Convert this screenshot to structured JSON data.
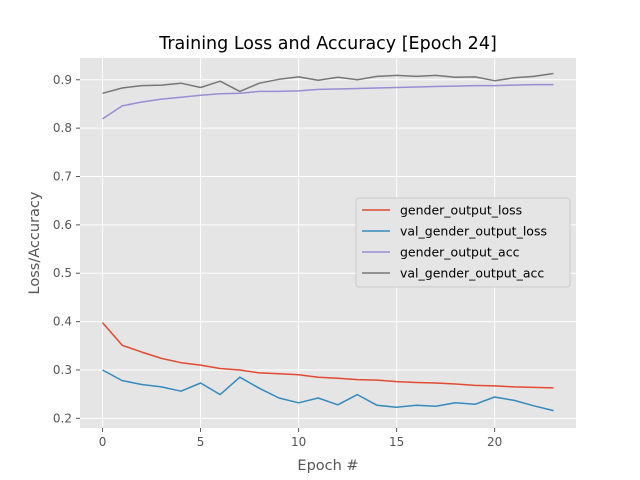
{
  "chart_data": {
    "type": "line",
    "title": "Training Loss and Accuracy  [Epoch 24]",
    "xlabel": "Epoch #",
    "ylabel": "Loss/Accuracy",
    "xlim": [
      -1.15,
      24.15
    ],
    "ylim": [
      0.18,
      0.945
    ],
    "xticks": [
      0,
      5,
      10,
      15,
      20
    ],
    "yticks": [
      0.2,
      0.3,
      0.4,
      0.5,
      0.6,
      0.7,
      0.8,
      0.9
    ],
    "grid": true,
    "legend_position": "center-right",
    "style": "ggplot",
    "x": [
      0,
      1,
      2,
      3,
      4,
      5,
      6,
      7,
      8,
      9,
      10,
      11,
      12,
      13,
      14,
      15,
      16,
      17,
      18,
      19,
      20,
      21,
      22,
      23
    ],
    "series": [
      {
        "name": "gender_output_loss",
        "color": "#e24a33",
        "values": [
          0.398,
          0.351,
          0.337,
          0.324,
          0.315,
          0.31,
          0.303,
          0.3,
          0.294,
          0.292,
          0.29,
          0.285,
          0.283,
          0.28,
          0.279,
          0.276,
          0.274,
          0.273,
          0.271,
          0.268,
          0.267,
          0.265,
          0.264,
          0.263
        ]
      },
      {
        "name": "val_gender_output_loss",
        "color": "#348abd",
        "values": [
          0.3,
          0.278,
          0.27,
          0.265,
          0.256,
          0.273,
          0.249,
          0.285,
          0.262,
          0.242,
          0.232,
          0.242,
          0.228,
          0.249,
          0.227,
          0.223,
          0.227,
          0.225,
          0.232,
          0.229,
          0.244,
          0.237,
          0.226,
          0.216
        ]
      },
      {
        "name": "gender_output_acc",
        "color": "#988ed5",
        "values": [
          0.819,
          0.846,
          0.854,
          0.86,
          0.864,
          0.868,
          0.871,
          0.872,
          0.876,
          0.876,
          0.877,
          0.88,
          0.881,
          0.882,
          0.883,
          0.884,
          0.885,
          0.886,
          0.887,
          0.888,
          0.888,
          0.889,
          0.89,
          0.89
        ]
      },
      {
        "name": "val_gender_output_acc",
        "color": "#777777",
        "values": [
          0.872,
          0.883,
          0.888,
          0.889,
          0.893,
          0.884,
          0.897,
          0.876,
          0.893,
          0.901,
          0.906,
          0.899,
          0.905,
          0.9,
          0.907,
          0.909,
          0.907,
          0.909,
          0.905,
          0.906,
          0.898,
          0.904,
          0.907,
          0.913
        ]
      }
    ]
  }
}
